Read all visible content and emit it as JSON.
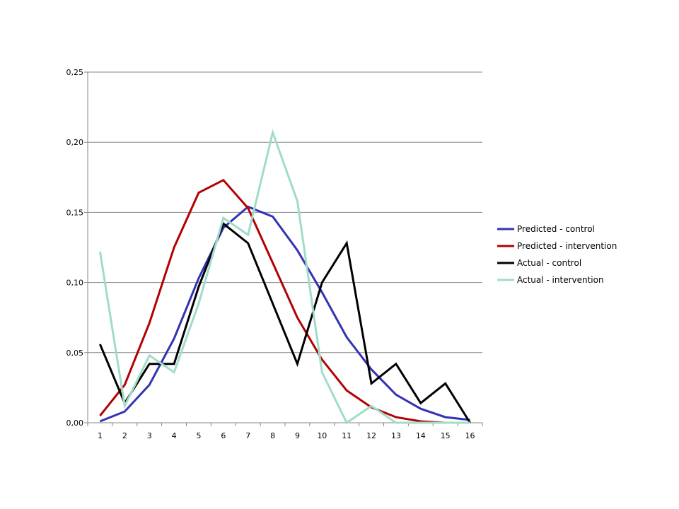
{
  "chart_data": {
    "type": "line",
    "x": [
      1,
      2,
      3,
      4,
      5,
      6,
      7,
      8,
      9,
      10,
      11,
      12,
      13,
      14,
      15,
      16
    ],
    "ylim": [
      0,
      0.25
    ],
    "yticks": [
      "0,00",
      "0,05",
      "0,10",
      "0,15",
      "0,20",
      "0,25"
    ],
    "grid": true,
    "legend_position": "right",
    "series": [
      {
        "name": "Predicted - control",
        "color": "#3333b3",
        "values": [
          0.001,
          0.008,
          0.027,
          0.06,
          0.103,
          0.139,
          0.154,
          0.147,
          0.123,
          0.093,
          0.061,
          0.038,
          0.02,
          0.01,
          0.004,
          0.002
        ]
      },
      {
        "name": "Predicted - intervention",
        "color": "#b30000",
        "values": [
          0.005,
          0.027,
          0.071,
          0.125,
          0.164,
          0.173,
          0.153,
          0.114,
          0.075,
          0.045,
          0.023,
          0.011,
          0.004,
          0.001,
          0.0,
          0.0
        ]
      },
      {
        "name": "Actual - control",
        "color": "#000000",
        "values": [
          0.056,
          0.014,
          0.042,
          0.042,
          0.097,
          0.142,
          0.128,
          0.085,
          0.042,
          0.1,
          0.128,
          0.028,
          0.042,
          0.014,
          0.028,
          0.0
        ]
      },
      {
        "name": "Actual - intervention",
        "color": "#a0dcc8",
        "values": [
          0.122,
          0.012,
          0.048,
          0.036,
          0.085,
          0.146,
          0.134,
          0.207,
          0.158,
          0.036,
          0.0,
          0.012,
          0.0,
          0.0,
          0.0,
          0.0
        ]
      }
    ]
  }
}
